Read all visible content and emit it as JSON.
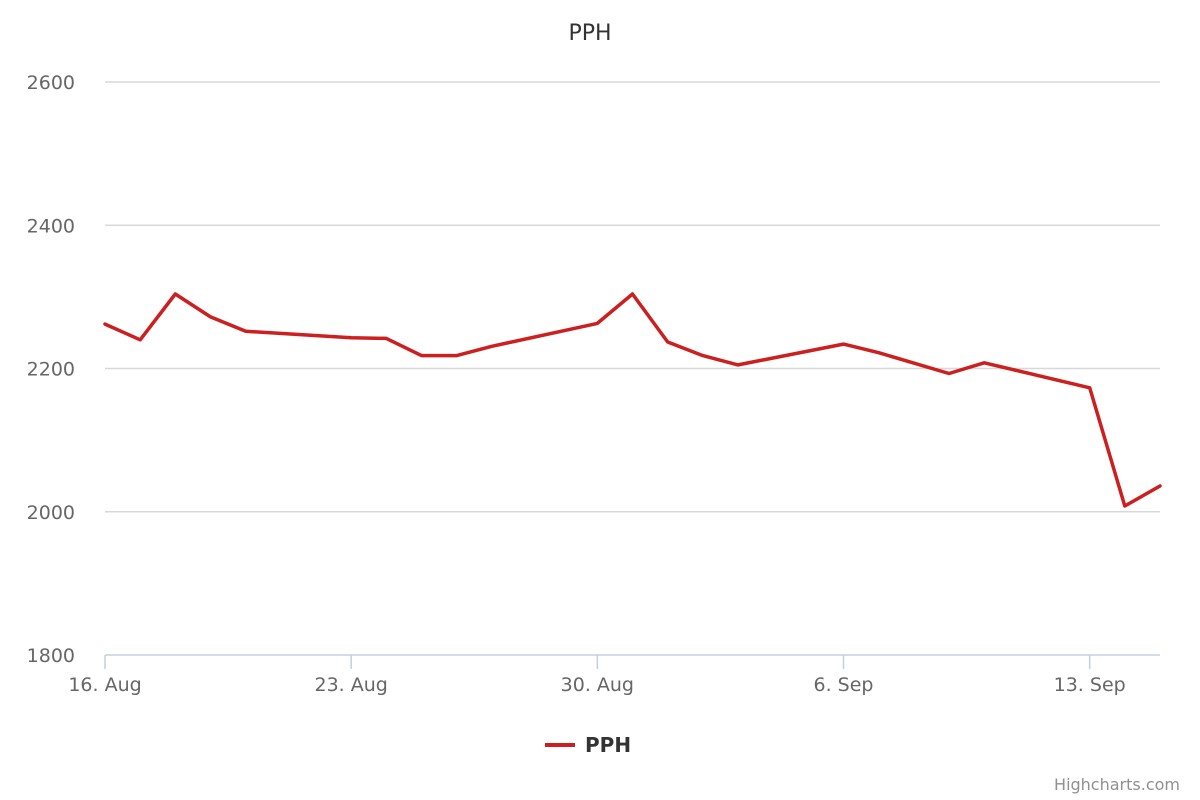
{
  "chart_data": {
    "type": "line",
    "title": "PPH",
    "xlabel": "",
    "ylabel": "",
    "ylim": [
      1800,
      2600
    ],
    "yticks": [
      1800,
      2000,
      2200,
      2400,
      2600
    ],
    "xticks": [
      "16. Aug",
      "23. Aug",
      "30. Aug",
      "6. Sep",
      "13. Sep"
    ],
    "x_dates": [
      "2016-08-16",
      "2016-08-17",
      "2016-08-18",
      "2016-08-19",
      "2016-08-20",
      "2016-08-23",
      "2016-08-24",
      "2016-08-25",
      "2016-08-26",
      "2016-08-27",
      "2016-08-30",
      "2016-08-31",
      "2016-09-01",
      "2016-09-02",
      "2016-09-03",
      "2016-09-06",
      "2016-09-07",
      "2016-09-09",
      "2016-09-10",
      "2016-09-13",
      "2016-09-14",
      "2016-09-15"
    ],
    "x_domain": [
      "2016-08-16",
      "2016-09-15"
    ],
    "grid": true,
    "legend_position": "bottom-center",
    "series": [
      {
        "name": "PPH",
        "color": "#cc1f1f",
        "values": [
          2262,
          2240,
          2304,
          2272,
          2252,
          2243,
          2242,
          2218,
          2218,
          2231,
          2263,
          2304,
          2237,
          2218,
          2205,
          2234,
          2222,
          2193,
          2208,
          2173,
          2008,
          2036
        ]
      }
    ],
    "credits": "Highcharts.com"
  }
}
